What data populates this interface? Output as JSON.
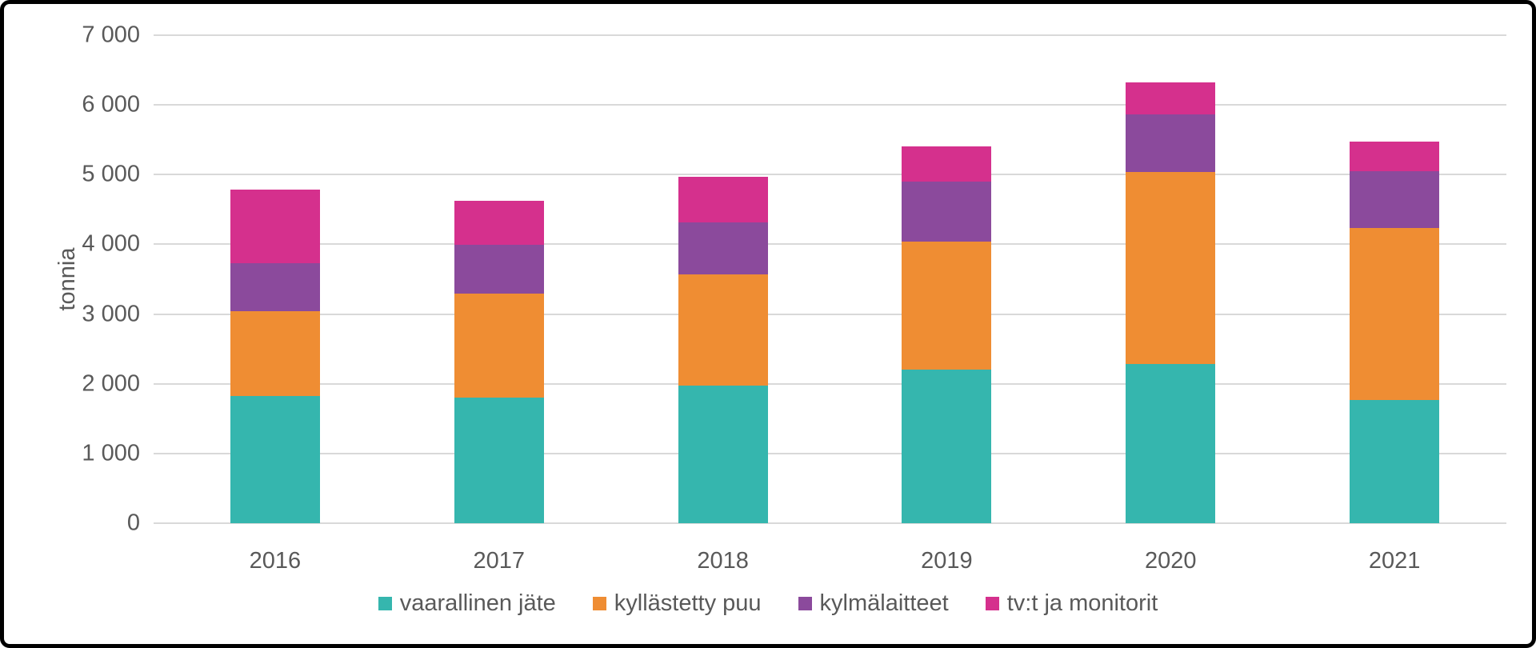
{
  "figure": {
    "background": "#ffffff",
    "border_color": "#000000",
    "text_color": "#595959",
    "gridline_color": "#d9d9d9"
  },
  "chart_data": {
    "type": "bar",
    "stacked": true,
    "title": "",
    "xlabel": "",
    "ylabel": "tonnia",
    "categories": [
      "2016",
      "2017",
      "2018",
      "2019",
      "2020",
      "2021"
    ],
    "series": [
      {
        "name": "vaarallinen jäte",
        "color": "#35b6ae",
        "values": [
          1820,
          1800,
          1970,
          2200,
          2280,
          1770
        ]
      },
      {
        "name": "kyllästetty puu",
        "color": "#ef8d33",
        "values": [
          1220,
          1490,
          1600,
          1840,
          2760,
          2470
        ]
      },
      {
        "name": "kylmälaitteet",
        "color": "#8b4a9c",
        "values": [
          690,
          700,
          750,
          860,
          820,
          810
        ]
      },
      {
        "name": "tv:t ja monitorit",
        "color": "#d5308d",
        "values": [
          1060,
          630,
          650,
          510,
          460,
          420
        ]
      }
    ],
    "totals": [
      4790,
      4620,
      4970,
      5410,
      6320,
      5470
    ],
    "ylim": [
      0,
      7000
    ],
    "ytick_interval": 1000,
    "ytick_labels": [
      "0",
      "1 000",
      "2 000",
      "3 000",
      "4 000",
      "5 000",
      "6 000",
      "7 000"
    ],
    "grid": true,
    "legend_position": "bottom"
  }
}
